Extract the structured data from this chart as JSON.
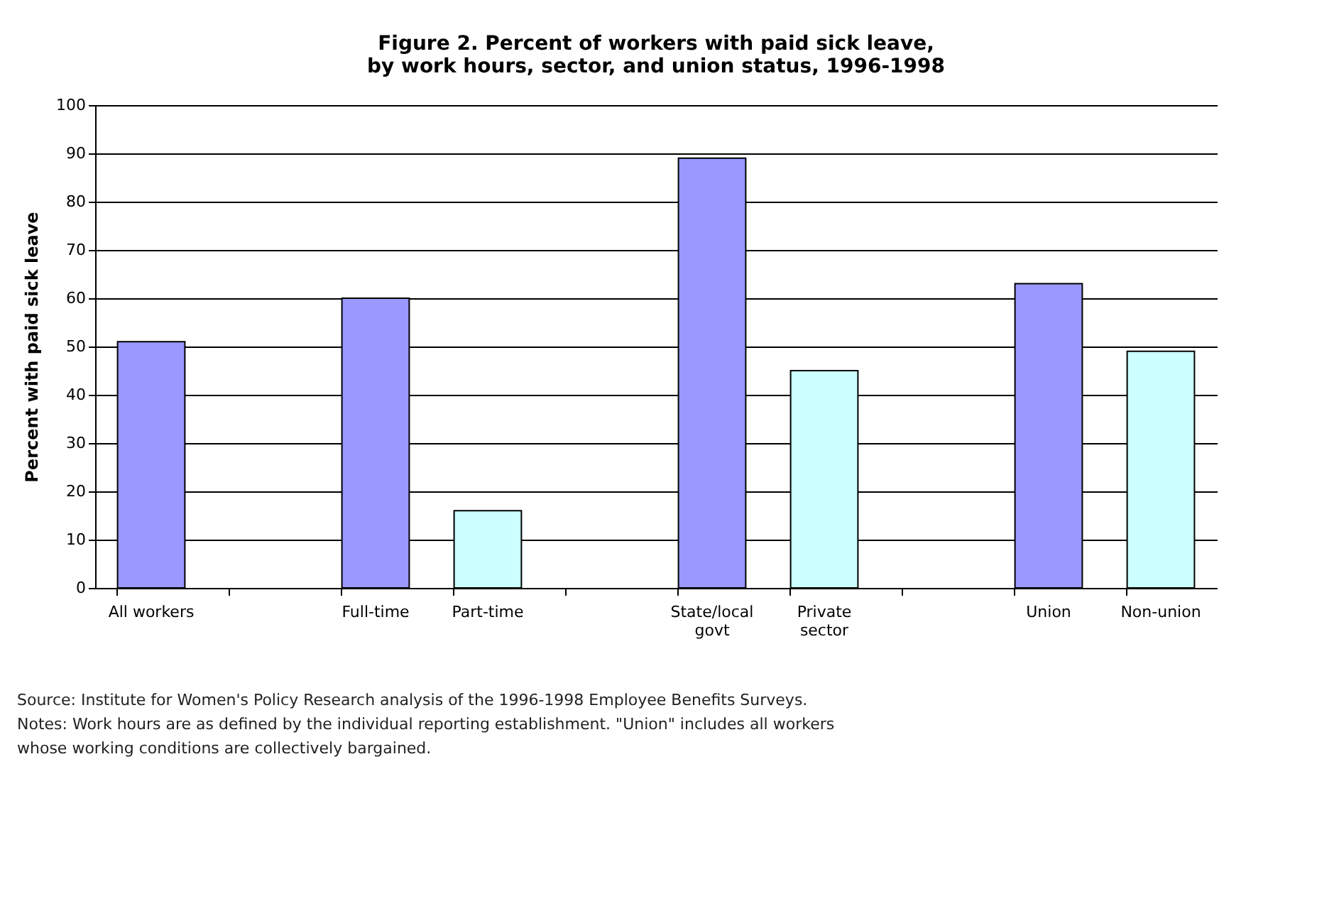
{
  "chart_data": {
    "type": "bar",
    "title": "Figure 2. Percent of workers with paid sick leave,\nby work hours, sector, and union status, 1996-1998",
    "ylabel": "Percent with paid sick leave",
    "categories": [
      "All workers",
      null,
      "Full-time",
      "Part-time",
      null,
      "State/local\ngovt",
      "Private\nsector",
      null,
      "Union",
      "Non-union"
    ],
    "values": [
      51,
      null,
      60,
      16,
      null,
      89,
      45,
      null,
      63,
      49
    ],
    "colors": [
      "#9999ff",
      "#9999ff",
      "#9999ff",
      "#ccffff",
      "#ccffff",
      "#9999ff",
      "#ccffff",
      "#9999ff",
      "#9999ff",
      "#ccffff"
    ],
    "ylim": [
      0,
      100
    ],
    "yticks": [
      0,
      10,
      20,
      30,
      40,
      50,
      60,
      70,
      80,
      90,
      100
    ],
    "grid": "y",
    "annotations": [
      "Source: Institute for Women's Policy Research analysis of the 1996-1998 Employee Benefits Surveys.",
      "Notes: Work hours are as defined by the individual reporting establishment. \"Union\" includes all workers\nwhose working conditions are collectively bargained."
    ]
  }
}
